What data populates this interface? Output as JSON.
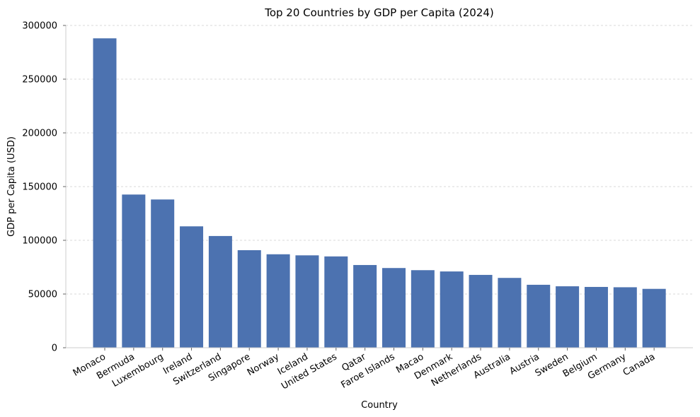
{
  "chart_data": {
    "type": "bar",
    "title": "Top 20 Countries by GDP per Capita (2024)",
    "xlabel": "Country",
    "ylabel": "GDP per Capita (USD)",
    "ylim": [
      0,
      300000
    ],
    "yticks": [
      0,
      50000,
      100000,
      150000,
      200000,
      250000,
      300000
    ],
    "ytick_labels": [
      "0",
      "50000",
      "100000",
      "150000",
      "200000",
      "250000",
      "300000"
    ],
    "grid": "y-dashed",
    "bar_color": "#4c72b0",
    "categories": [
      "Monaco",
      "Bermuda",
      "Luxembourg",
      "Ireland",
      "Switzerland",
      "Singapore",
      "Norway",
      "Iceland",
      "United States",
      "Qatar",
      "Faroe Islands",
      "Macao",
      "Denmark",
      "Netherlands",
      "Australia",
      "Austria",
      "Sweden",
      "Belgium",
      "Germany",
      "Canada"
    ],
    "values": [
      288000,
      142600,
      138000,
      113000,
      104000,
      90800,
      87000,
      86000,
      85000,
      77000,
      74200,
      72200,
      71000,
      67800,
      65000,
      58600,
      57200,
      56600,
      56300,
      54800
    ]
  }
}
